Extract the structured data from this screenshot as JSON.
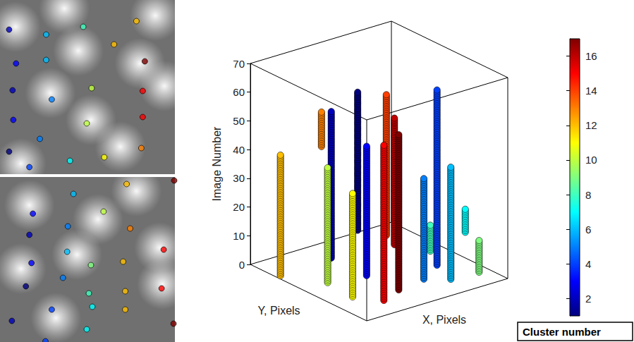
{
  "images": [
    {
      "xlim": [
        0,
        250
      ],
      "ylim": [
        0,
        247
      ],
      "bright_spots": [
        [
          72,
          132
        ],
        [
          130,
          170
        ],
        [
          112,
          72
        ],
        [
          22,
          38
        ],
        [
          222,
          22
        ],
        [
          92,
          12
        ],
        [
          235,
          122
        ],
        [
          172,
          208
        ],
        [
          30,
          232
        ],
        [
          200,
          90
        ]
      ],
      "points": [
        [
          13,
          42,
          2
        ],
        [
          66,
          49,
          6
        ],
        [
          119,
          38,
          8
        ],
        [
          195,
          30,
          12
        ],
        [
          163,
          63,
          12
        ],
        [
          23,
          90,
          3
        ],
        [
          66,
          85,
          6
        ],
        [
          207,
          87,
          17
        ],
        [
          18,
          128,
          2
        ],
        [
          131,
          125,
          10
        ],
        [
          74,
          141,
          5
        ],
        [
          204,
          129,
          15
        ],
        [
          19,
          170,
          3
        ],
        [
          124,
          175,
          10
        ],
        [
          204,
          166,
          15
        ],
        [
          57,
          197,
          5
        ],
        [
          13,
          215,
          1
        ],
        [
          149,
          223,
          11
        ],
        [
          202,
          210,
          13
        ],
        [
          42,
          237,
          4
        ],
        [
          100,
          228,
          7
        ]
      ]
    },
    {
      "xlim": [
        0,
        250
      ],
      "ylim": [
        0,
        234
      ],
      "bright_spots": [
        [
          42,
          40
        ],
        [
          110,
          110
        ],
        [
          228,
          100
        ],
        [
          232,
          152
        ],
        [
          195,
          20
        ],
        [
          30,
          130
        ],
        [
          140,
          60
        ],
        [
          80,
          200
        ]
      ],
      "points": [
        [
          105,
          24,
          6
        ],
        [
          181,
          10,
          12
        ],
        [
          249,
          5,
          17
        ],
        [
          47,
          52,
          3
        ],
        [
          148,
          49,
          10
        ],
        [
          186,
          73,
          13
        ],
        [
          42,
          82,
          2
        ],
        [
          97,
          70,
          5
        ],
        [
          96,
          106,
          6
        ],
        [
          45,
          122,
          3
        ],
        [
          130,
          125,
          9
        ],
        [
          176,
          120,
          12
        ],
        [
          234,
          103,
          15
        ],
        [
          90,
          143,
          5
        ],
        [
          127,
          165,
          8
        ],
        [
          179,
          162,
          12
        ],
        [
          231,
          158,
          15
        ],
        [
          37,
          155,
          1
        ],
        [
          17,
          204,
          2
        ],
        [
          74,
          188,
          4
        ],
        [
          132,
          184,
          7
        ],
        [
          179,
          188,
          12
        ],
        [
          124,
          216,
          7
        ],
        [
          248,
          208,
          17
        ],
        [
          65,
          233,
          4
        ]
      ]
    }
  ],
  "chart_data": {
    "type": "scatter3d",
    "xlabel": "X, Pixels",
    "ylabel": "Y, Pixels",
    "zlabel": "Image Number",
    "xlim": [
      0,
      256
    ],
    "ylim": [
      0,
      256
    ],
    "zlim": [
      0,
      70
    ],
    "zticks": [
      0,
      10,
      20,
      30,
      40,
      50,
      60,
      70
    ],
    "marker": "circle",
    "clusters": [
      {
        "cluster": 1,
        "x": 188,
        "y": 248,
        "image_range": [
          2,
          50
        ]
      },
      {
        "cluster": 14,
        "x": 213,
        "y": 215,
        "image_range": [
          1,
          50
        ]
      },
      {
        "cluster": 16,
        "x": 202,
        "y": 184,
        "image_range": [
          1,
          45
        ]
      },
      {
        "cluster": 13,
        "x": 120,
        "y": 245,
        "image_range": [
          35,
          47
        ]
      },
      {
        "cluster": 8,
        "x": 226,
        "y": 134,
        "image_range": [
          1,
          10
        ]
      },
      {
        "cluster": 7,
        "x": 249,
        "y": 85,
        "image_range": [
          10,
          18
        ]
      },
      {
        "cluster": 2,
        "x": 99,
        "y": 198,
        "image_range": [
          1,
          52
        ]
      },
      {
        "cluster": 4,
        "x": 201,
        "y": 89,
        "image_range": [
          1,
          62
        ]
      },
      {
        "cluster": 9,
        "x": 232,
        "y": 34,
        "image_range": [
          1,
          12
        ]
      },
      {
        "cluster": 6,
        "x": 184,
        "y": 38,
        "image_range": [
          1,
          40
        ]
      },
      {
        "cluster": 3,
        "x": 98,
        "y": 119,
        "image_range": [
          1,
          46
        ]
      },
      {
        "cluster": 5,
        "x": 154,
        "y": 61,
        "image_range": [
          1,
          36
        ]
      },
      {
        "cluster": 12,
        "x": 1,
        "y": 191,
        "image_range": [
          1,
          43
        ]
      },
      {
        "cluster": 10,
        "x": 38,
        "y": 132,
        "image_range": [
          1,
          41
        ]
      },
      {
        "cluster": 17,
        "x": 101,
        "y": 52,
        "image_range": [
          1,
          55
        ]
      },
      {
        "cluster": 11,
        "x": 33,
        "y": 71,
        "image_range": [
          1,
          37
        ]
      },
      {
        "cluster": 15,
        "x": 60,
        "y": 35,
        "image_range": [
          1,
          55
        ]
      }
    ],
    "colorbar": {
      "range": [
        1,
        17
      ],
      "ticks": [
        2,
        4,
        6,
        8,
        10,
        12,
        14,
        16
      ],
      "label": "Cluster number"
    }
  }
}
